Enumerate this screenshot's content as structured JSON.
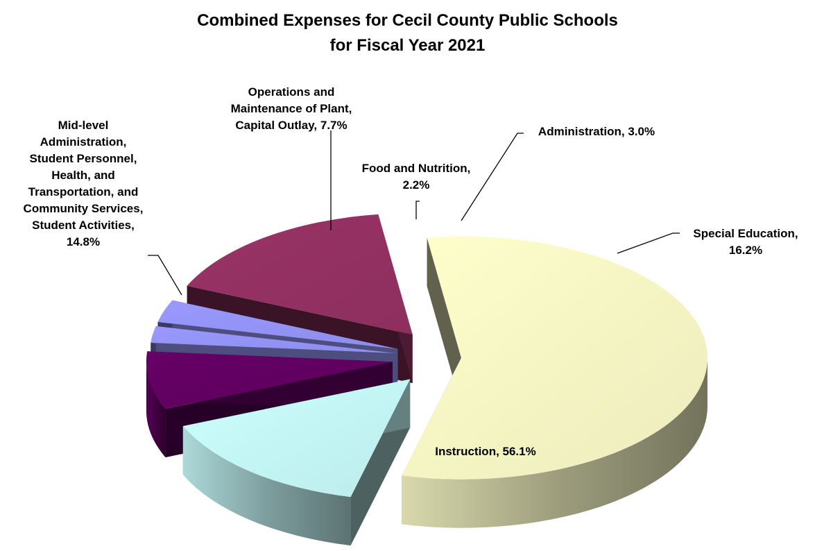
{
  "chart_data": {
    "type": "pie",
    "title": [
      "Combined Expenses for Cecil County Public Schools",
      "for Fiscal Year 2021"
    ],
    "slices": [
      {
        "label": "Instruction",
        "value": 56.1,
        "label_text": [
          "Instruction, 56.1%"
        ],
        "color": "#FFFFCC"
      },
      {
        "label": "Mid-level Administration, Student Personnel, Health, and Transportation, and Community Services, Student Activities",
        "value": 14.8,
        "label_text": [
          "Mid-level",
          "Administration,",
          "Student Personnel,",
          "Health, and",
          "Transportation, and",
          "Community Services,",
          "Student Activities,",
          "14.8%"
        ],
        "color": "#CCFFFF"
      },
      {
        "label": "Operations and Maintenance of Plant, Capital Outlay",
        "value": 7.7,
        "label_text": [
          "Operations and",
          "Maintenance of Plant,",
          "Capital Outlay, 7.7%"
        ],
        "color": "#660066"
      },
      {
        "label": "Food and Nutrition",
        "value": 2.2,
        "label_text": [
          "Food and Nutrition,",
          "2.2%"
        ],
        "color": "#9999FF"
      },
      {
        "label": "Administration",
        "value": 3.0,
        "label_text": [
          "Administration, 3.0%"
        ],
        "color": "#9999FF"
      },
      {
        "label": "Special Education",
        "value": 16.2,
        "label_text": [
          "Special Education,",
          "16.2%"
        ],
        "color": "#993366"
      }
    ],
    "legend": "none",
    "style": "3d-exploded"
  }
}
